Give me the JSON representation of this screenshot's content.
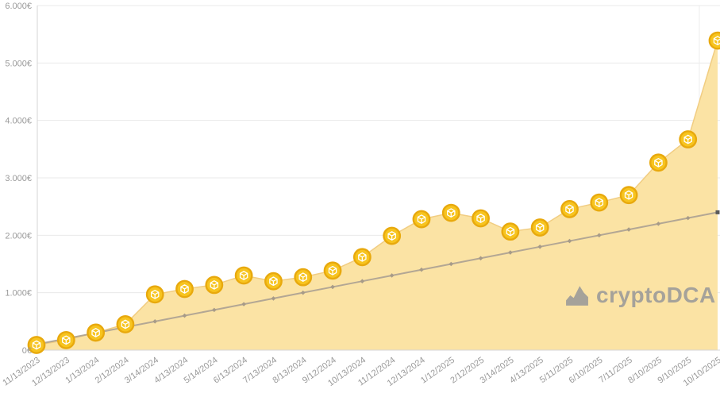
{
  "chart_data": {
    "type": "area",
    "title": "",
    "x": [
      "11/13/2023",
      "12/13/2023",
      "1/13/2024",
      "2/12/2024",
      "3/14/2024",
      "4/13/2024",
      "5/14/2024",
      "6/13/2024",
      "7/13/2024",
      "8/13/2024",
      "9/12/2024",
      "10/13/2024",
      "11/12/2024",
      "12/13/2024",
      "1/12/2025",
      "2/12/2025",
      "3/14/2025",
      "4/13/2025",
      "5/11/2025",
      "6/10/2025",
      "7/11/2025",
      "8/10/2025",
      "9/10/2025",
      "10/10/2025"
    ],
    "series": [
      {
        "name": "portfolio-value",
        "type": "area",
        "marker": "coin-icon",
        "values": [
          90,
          175,
          305,
          450,
          970,
          1065,
          1135,
          1300,
          1200,
          1270,
          1385,
          1620,
          1990,
          2280,
          2390,
          2295,
          2065,
          2135,
          2455,
          2570,
          2700,
          3265,
          3670,
          5390
        ]
      },
      {
        "name": "invested-amount",
        "type": "line",
        "marker": "diamond",
        "values": [
          100,
          200,
          300,
          400,
          500,
          600,
          700,
          800,
          900,
          1000,
          1100,
          1200,
          1300,
          1400,
          1500,
          1600,
          1700,
          1800,
          1900,
          2000,
          2100,
          2200,
          2300,
          2400
        ]
      }
    ],
    "ylim": [
      0,
      6000
    ],
    "y_tick_labels": [
      "0€",
      "1.000€",
      "2.000€",
      "3.000€",
      "4.000€",
      "5.000€",
      "6.000€"
    ],
    "grid": "horizontal",
    "legend": "none",
    "currency": "EUR"
  },
  "watermark": {
    "label": "cryptoDCA",
    "icon": "area-chart-icon"
  },
  "colors": {
    "area_fill": "#fbe3a4",
    "area_stroke": "#f1cd82",
    "coin_fill": "#f7c41f",
    "coin_ring": "#e8a90d",
    "coin_glyph": "#ffffff",
    "invested_line": "#b3a794",
    "invested_marker": "#a79b88",
    "invested_end_dot": "#5a5a5a",
    "grid_line": "#e9e9e9",
    "axis_line": "#d6d6d6",
    "tick_text": "#999999",
    "watermark_text": "#a5a29a"
  }
}
